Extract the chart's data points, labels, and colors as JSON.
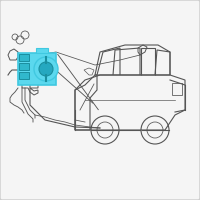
{
  "background_color": "#f5f5f5",
  "border_color": "#cccccc",
  "car_body_color": "#555555",
  "highlight_color": "#40c8e0",
  "highlight_fill": "#5bd8ee",
  "line_color": "#555555",
  "line_width": 0.8,
  "fig_width": 2.0,
  "fig_height": 2.0,
  "dpi": 100
}
